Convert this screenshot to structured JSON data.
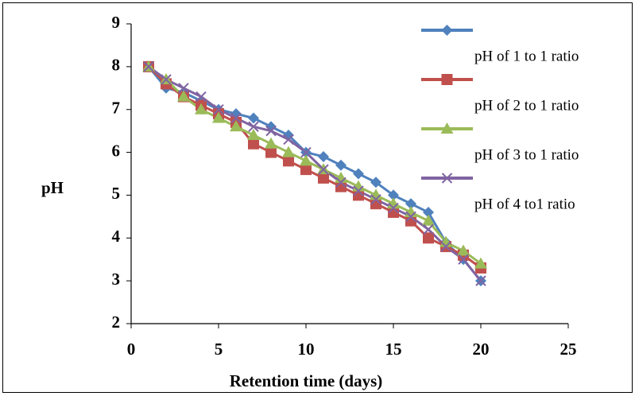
{
  "chart_data": {
    "type": "line",
    "x_label": "Retention time (days)",
    "y_label": "pH",
    "x": [
      1,
      2,
      3,
      4,
      5,
      6,
      7,
      8,
      9,
      10,
      11,
      12,
      13,
      14,
      15,
      16,
      17,
      18,
      19,
      20
    ],
    "series": [
      {
        "name": "pH of 1 to 1 ratio",
        "color": "#4f81bd",
        "marker": "diamond",
        "values": [
          8.0,
          7.5,
          7.4,
          7.2,
          7.0,
          6.9,
          6.8,
          6.6,
          6.4,
          6.0,
          5.9,
          5.7,
          5.5,
          5.3,
          5.0,
          4.8,
          4.6,
          3.9,
          3.5,
          3.0
        ]
      },
      {
        "name": "pH of 2 to 1 ratio",
        "color": "#c0504d",
        "marker": "square",
        "values": [
          8.0,
          7.6,
          7.3,
          7.1,
          6.9,
          6.7,
          6.2,
          6.0,
          5.8,
          5.6,
          5.4,
          5.2,
          5.0,
          4.8,
          4.6,
          4.4,
          4.0,
          3.8,
          3.6,
          3.3
        ]
      },
      {
        "name": "pH of 3 to 1 ratio",
        "color": "#9bbb59",
        "marker": "triangle",
        "values": [
          8.0,
          7.7,
          7.3,
          7.0,
          6.8,
          6.6,
          6.4,
          6.2,
          6.0,
          5.8,
          5.6,
          5.4,
          5.2,
          5.0,
          4.8,
          4.6,
          4.4,
          3.9,
          3.7,
          3.4
        ]
      },
      {
        "name": "pH of 4 to1 ratio",
        "color": "#8064a2",
        "marker": "x",
        "values": [
          8.0,
          7.7,
          7.5,
          7.3,
          7.0,
          6.8,
          6.6,
          6.5,
          6.3,
          6.0,
          5.6,
          5.3,
          5.1,
          4.9,
          4.7,
          4.5,
          4.2,
          3.8,
          3.5,
          3.0
        ]
      }
    ],
    "xlim": [
      0,
      25
    ],
    "xticks": [
      0,
      5,
      10,
      15,
      20,
      25
    ],
    "ylim": [
      2,
      9
    ],
    "yticks": [
      2,
      3,
      4,
      5,
      6,
      7,
      8,
      9
    ],
    "grid": false,
    "legend": "right"
  }
}
